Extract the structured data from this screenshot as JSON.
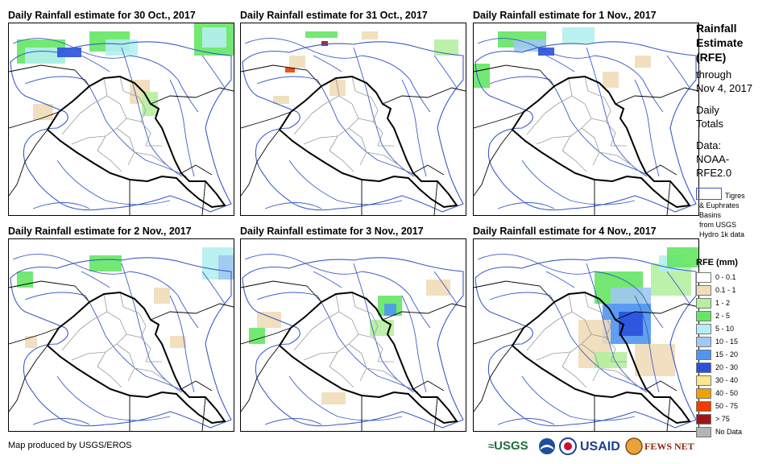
{
  "panels": [
    {
      "title": "Daily Rainfall estimate for 30 Oct., 2017"
    },
    {
      "title": "Daily Rainfall estimate for 31 Oct., 2017"
    },
    {
      "title": "Daily Rainfall estimate for 1 Nov., 2017"
    },
    {
      "title": "Daily Rainfall estimate for 2 Nov., 2017"
    },
    {
      "title": "Daily Rainfall estimate for 3 Nov., 2017"
    },
    {
      "title": "Daily Rainfall estimate for 4 Nov., 2017"
    }
  ],
  "sidebar": {
    "title_lines": [
      "Rainfall",
      "Estimate",
      "(RFE)"
    ],
    "subtitle_lines": [
      "through",
      "Nov 4, 2017"
    ],
    "totals_lines": [
      "Daily",
      "Totals"
    ],
    "data_lines": [
      "Data:",
      "NOAA-",
      "RFE2.0"
    ],
    "basin_legend": {
      "line1": "Tigres",
      "line2": "& Euphrates",
      "line3": "Basins",
      "line4": "from USGS",
      "line5": "Hydro 1k data",
      "color": "#3a5bc7"
    }
  },
  "legend": {
    "title": "RFE (mm)",
    "items": [
      {
        "label": "0 - 0.1",
        "color": "#ffffff"
      },
      {
        "label": "0.1 - 1",
        "color": "#f0dcb8"
      },
      {
        "label": "1 - 2",
        "color": "#b4f0a0"
      },
      {
        "label": "2 - 5",
        "color": "#64e664"
      },
      {
        "label": "5 - 10",
        "color": "#b4f0f0"
      },
      {
        "label": "10 - 15",
        "color": "#a0c8f0"
      },
      {
        "label": "15 - 20",
        "color": "#5096f0"
      },
      {
        "label": "20 - 30",
        "color": "#2850dc"
      },
      {
        "label": "30 - 40",
        "color": "#fae68c"
      },
      {
        "label": "40 - 50",
        "color": "#f0a000"
      },
      {
        "label": "50 - 75",
        "color": "#f03c00"
      },
      {
        "label": "> 75",
        "color": "#a01414"
      },
      {
        "label": "No Data",
        "color": "#b4b4b4"
      }
    ]
  },
  "footer": {
    "credit": "Map produced by USGS/EROS",
    "logos": {
      "usgs": "USGS",
      "noaa": "NOAA",
      "usaid": "USAID",
      "fews": "FEWS NET"
    }
  }
}
